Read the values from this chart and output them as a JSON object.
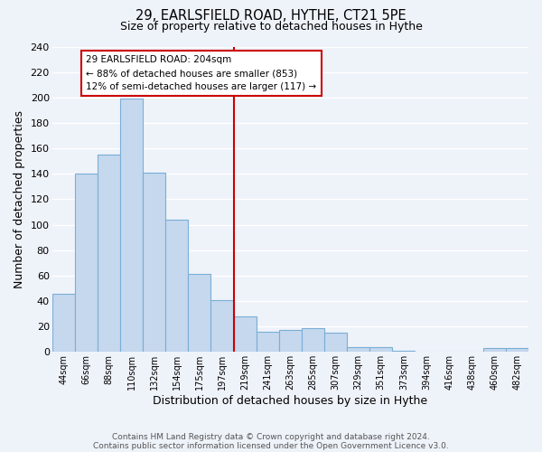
{
  "title1": "29, EARLSFIELD ROAD, HYTHE, CT21 5PE",
  "title2": "Size of property relative to detached houses in Hythe",
  "xlabel": "Distribution of detached houses by size in Hythe",
  "ylabel": "Number of detached properties",
  "bar_labels": [
    "44sqm",
    "66sqm",
    "88sqm",
    "110sqm",
    "132sqm",
    "154sqm",
    "175sqm",
    "197sqm",
    "219sqm",
    "241sqm",
    "263sqm",
    "285sqm",
    "307sqm",
    "329sqm",
    "351sqm",
    "373sqm",
    "394sqm",
    "416sqm",
    "438sqm",
    "460sqm",
    "482sqm"
  ],
  "bar_values": [
    46,
    140,
    155,
    199,
    141,
    104,
    61,
    41,
    28,
    16,
    17,
    19,
    15,
    4,
    4,
    1,
    0,
    0,
    0,
    3,
    3
  ],
  "bar_color": "#c5d8ee",
  "bar_edge_color": "#7aaed6",
  "vline_x_index": 7.5,
  "annotation_title": "29 EARLSFIELD ROAD: 204sqm",
  "annotation_line1": "← 88% of detached houses are smaller (853)",
  "annotation_line2": "12% of semi-detached houses are larger (117) →",
  "annotation_box_color": "#ffffff",
  "annotation_box_edge": "#cc0000",
  "vline_color": "#cc0000",
  "ylim": [
    0,
    240
  ],
  "yticks": [
    0,
    20,
    40,
    60,
    80,
    100,
    120,
    140,
    160,
    180,
    200,
    220,
    240
  ],
  "footer1": "Contains HM Land Registry data © Crown copyright and database right 2024.",
  "footer2": "Contains public sector information licensed under the Open Government Licence v3.0.",
  "bg_color": "#eef2f9",
  "grid_color": "#ffffff"
}
